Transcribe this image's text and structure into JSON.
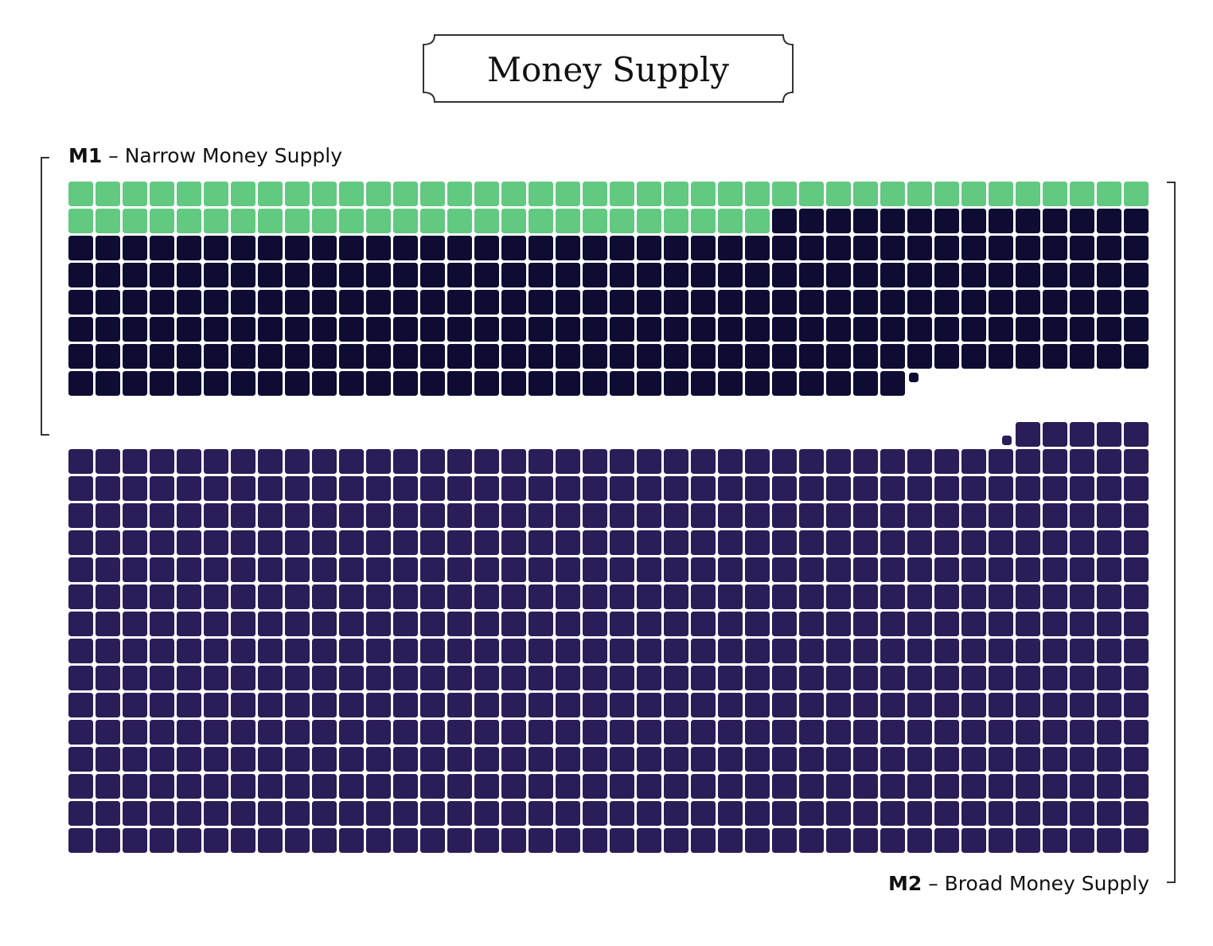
{
  "chart_data": {
    "type": "waffle",
    "title": "Money Supply",
    "columns": 40,
    "colors": {
      "green": "#62c981",
      "navy": "#0e0c33",
      "purple": "#2b1d58"
    },
    "groups": [
      {
        "code": "M1",
        "dash": " – ",
        "label": "Narrow Money Supply",
        "segments": [
          {
            "color": "green",
            "cells": 66
          },
          {
            "color": "navy",
            "cells": 245
          }
        ]
      },
      {
        "code": "M2",
        "dash": " – ",
        "label": "Broad Money Supply",
        "segments": [
          {
            "color": "purple",
            "cells": 605
          }
        ]
      }
    ]
  }
}
